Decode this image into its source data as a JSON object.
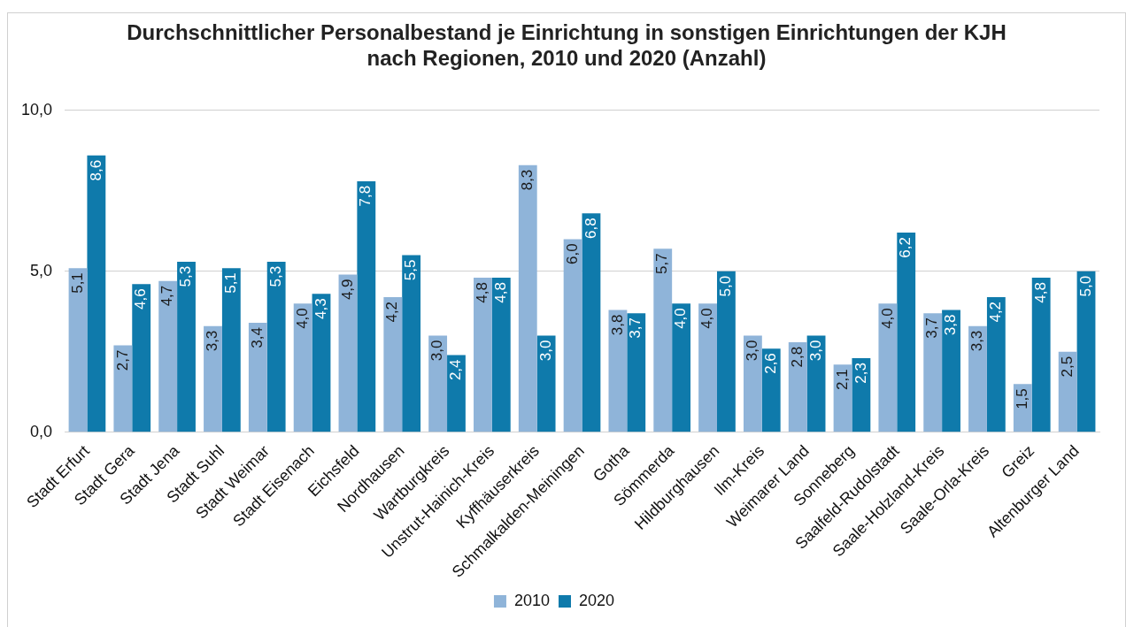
{
  "chart_data": {
    "type": "bar",
    "title": "Durchschnittlicher Personalbestand je Einrichtung in sonstigen Einrichtungen der KJH nach Regionen, 2010 und 2020 (Anzahl)",
    "categories": [
      "Stadt Erfurt",
      "Stadt Gera",
      "Stadt Jena",
      "Stadt Suhl",
      "Stadt Weimar",
      "Stadt Eisenach",
      "Eichsfeld",
      "Nordhausen",
      "Wartburgkreis",
      "Unstrut-Hainich-Kreis",
      "Kyffhäuserkreis",
      "Schmalkalden-Meiningen",
      "Gotha",
      "Sömmerda",
      "Hildburghausen",
      "Ilm-Kreis",
      "Weimarer Land",
      "Sonneberg",
      "Saalfeld-Rudolstadt",
      "Saale-Holzland-Kreis",
      "Saale-Orla-Kreis",
      "Greiz",
      "Altenburger Land"
    ],
    "series": [
      {
        "name": "2010",
        "color": "#8fb4d9",
        "values": [
          5.1,
          2.7,
          4.7,
          3.3,
          3.4,
          4.0,
          4.9,
          4.2,
          3.0,
          4.8,
          8.3,
          6.0,
          3.8,
          5.7,
          4.0,
          3.0,
          2.8,
          2.1,
          4.0,
          3.7,
          3.3,
          1.5,
          2.5
        ],
        "value_labels": [
          "5,1",
          "2,7",
          "4,7",
          "3,3",
          "3,4",
          "4,0",
          "4,9",
          "4,2",
          "3,0",
          "4,8",
          "8,3",
          "6,0",
          "3,8",
          "5,7",
          "4,0",
          "3,0",
          "2,8",
          "2,1",
          "4,0",
          "3,7",
          "3,3",
          "1,5",
          "2,5"
        ]
      },
      {
        "name": "2020",
        "color": "#0f7aab",
        "values": [
          8.6,
          4.6,
          5.3,
          5.1,
          5.3,
          4.3,
          7.8,
          5.5,
          2.4,
          4.8,
          3.0,
          6.8,
          3.7,
          4.0,
          5.0,
          2.6,
          3.0,
          2.3,
          6.2,
          3.8,
          4.2,
          4.8,
          5.0
        ],
        "value_labels": [
          "8,6",
          "4,6",
          "5,3",
          "5,1",
          "5,3",
          "4,3",
          "7,8",
          "5,5",
          "2,4",
          "4,8",
          "3,0",
          "6,8",
          "3,7",
          "4,0",
          "5,0",
          "2,6",
          "3,0",
          "2,3",
          "6,2",
          "3,8",
          "4,2",
          "4,8",
          "5,0"
        ]
      }
    ],
    "ylim": [
      0,
      10
    ],
    "yticks": [
      {
        "value": 0,
        "label": "0,0"
      },
      {
        "value": 5,
        "label": "5,0"
      },
      {
        "value": 10,
        "label": "10,0"
      }
    ],
    "grid": "y",
    "legend": "bottom"
  }
}
